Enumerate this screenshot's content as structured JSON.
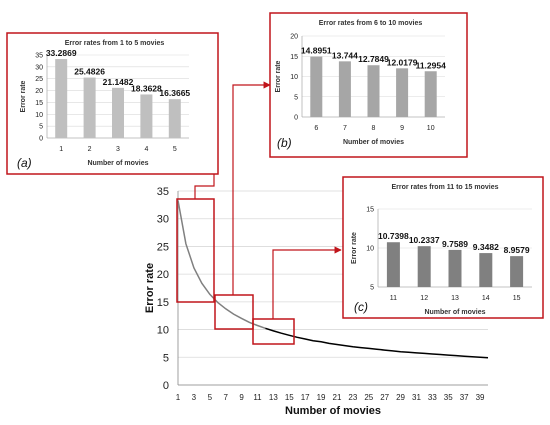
{
  "chart_data": [
    {
      "id": "main",
      "type": "line",
      "xlabel": "Number of movies",
      "ylabel": "Error rate",
      "xlim": [
        1,
        40
      ],
      "ylim": [
        0,
        35
      ],
      "yticks": [
        0,
        5,
        10,
        15,
        20,
        25,
        30,
        35
      ],
      "xticks": [
        1,
        3,
        5,
        7,
        9,
        11,
        13,
        15,
        17,
        19,
        21,
        23,
        25,
        27,
        29,
        31,
        33,
        35,
        37,
        39
      ],
      "grid": true,
      "series": [
        {
          "x": [
            1,
            2,
            3,
            4,
            5,
            6,
            7,
            8,
            9,
            10,
            11,
            12,
            13,
            14,
            15,
            16,
            17,
            18,
            19,
            20,
            21,
            22,
            23,
            24,
            25,
            26,
            27,
            28,
            29,
            30,
            31,
            32,
            33,
            34,
            35,
            36,
            37,
            38,
            39,
            40
          ],
          "y": [
            33.2869,
            25.4826,
            21.1482,
            18.3628,
            16.3665,
            14.8951,
            13.744,
            12.7849,
            12.0179,
            11.2954,
            10.7398,
            10.2337,
            9.7589,
            9.3482,
            8.9579,
            8.6,
            8.3,
            8.0,
            7.8,
            7.5,
            7.3,
            7.1,
            6.9,
            6.75,
            6.6,
            6.45,
            6.3,
            6.15,
            6.0,
            5.9,
            5.8,
            5.7,
            5.6,
            5.5,
            5.4,
            5.3,
            5.2,
            5.1,
            5.0,
            4.9
          ],
          "color_first": "#808080",
          "color_rest": "#000000"
        }
      ]
    },
    {
      "id": "a",
      "type": "bar",
      "title": "Error rates from 1 to 5 movies",
      "xlabel": "Number of movies",
      "ylabel": "Error rate",
      "panel_label": "(a)",
      "categories": [
        "1",
        "2",
        "3",
        "4",
        "5"
      ],
      "values": [
        33.2869,
        25.4826,
        21.1482,
        18.3628,
        16.3665
      ],
      "value_labels": [
        "33.2869",
        "25.4826",
        "21.1482",
        "18.3628",
        "16.3665"
      ],
      "ylim": [
        0,
        35
      ],
      "yticks": [
        0,
        5,
        10,
        15,
        20,
        25,
        30,
        35
      ],
      "bar_color": "#bfbfbf"
    },
    {
      "id": "b",
      "type": "bar",
      "title": "Error rates from 6 to 10 movies",
      "xlabel": "Number of movies",
      "ylabel": "Error rate",
      "panel_label": "(b)",
      "categories": [
        "6",
        "7",
        "8",
        "9",
        "10"
      ],
      "values": [
        14.8951,
        13.744,
        12.7849,
        12.0179,
        11.2954
      ],
      "value_labels": [
        "14.8951",
        "13.744",
        "12.7849",
        "12.0179",
        "11.2954"
      ],
      "ylim": [
        0,
        20
      ],
      "yticks": [
        0,
        5,
        10,
        15,
        20
      ],
      "bar_color": "#a6a6a6"
    },
    {
      "id": "c",
      "type": "bar",
      "title": "Error rates from 11 to 15 movies",
      "xlabel": "Number of movies",
      "ylabel": "Error rate",
      "panel_label": "(c)",
      "categories": [
        "11",
        "12",
        "13",
        "14",
        "15"
      ],
      "values": [
        10.7398,
        10.2337,
        9.7589,
        9.3482,
        8.9579
      ],
      "value_labels": [
        "10.7398",
        "10.2337",
        "9.7589",
        "9.3482",
        "8.9579"
      ],
      "ylim": [
        5,
        15
      ],
      "yticks": [
        5,
        10,
        15
      ],
      "bar_color": "#808080"
    }
  ],
  "colors": {
    "highlight": "#c0151b",
    "grid": "#d9d9d9"
  }
}
